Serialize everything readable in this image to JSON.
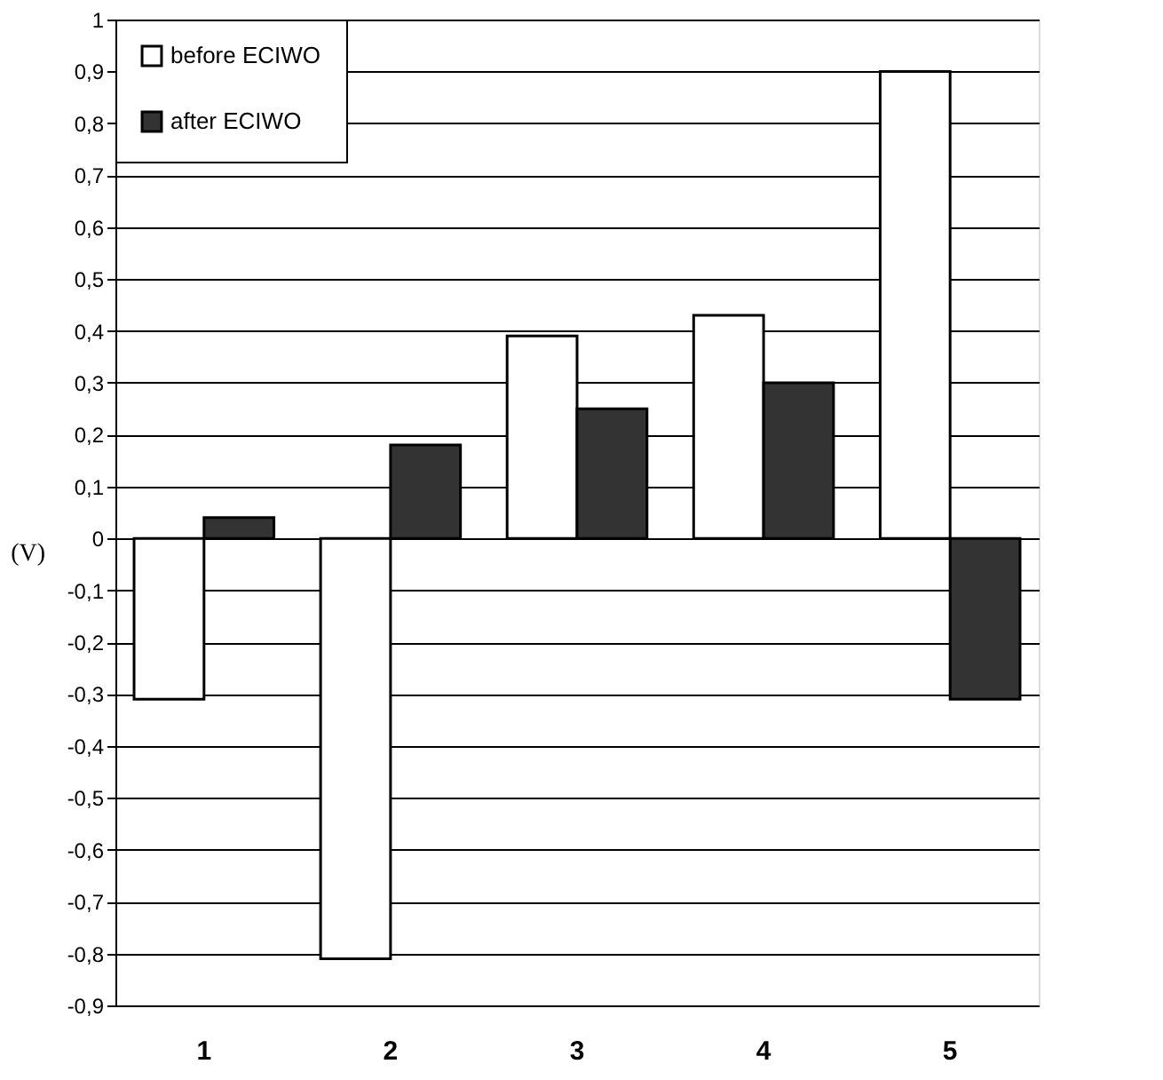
{
  "chart_data": {
    "type": "bar",
    "ylabel": "(V)",
    "categories": [
      "1",
      "2",
      "3",
      "4",
      "5"
    ],
    "series": [
      {
        "name": "before ECIWO",
        "color": "#ffffff",
        "values": [
          -0.31,
          -0.81,
          0.39,
          0.43,
          0.9
        ]
      },
      {
        "name": "after ECIWO",
        "color": "#333333",
        "values": [
          0.04,
          0.18,
          0.25,
          0.3,
          -0.31
        ]
      }
    ],
    "ylim": [
      -0.9,
      1
    ],
    "yticks": [
      {
        "value": -0.9,
        "label": "-0,9"
      },
      {
        "value": -0.8,
        "label": "-0,8"
      },
      {
        "value": -0.7,
        "label": "-0,7"
      },
      {
        "value": -0.6,
        "label": "-0,6"
      },
      {
        "value": -0.5,
        "label": "-0,5"
      },
      {
        "value": -0.4,
        "label": "-0,4"
      },
      {
        "value": -0.3,
        "label": "-0,3"
      },
      {
        "value": -0.2,
        "label": "-0,2"
      },
      {
        "value": -0.1,
        "label": "-0,1"
      },
      0,
      {
        "value": 0.1,
        "label": "0,1"
      },
      {
        "value": 0.2,
        "label": "0,2"
      },
      {
        "value": 0.3,
        "label": "0,3"
      },
      {
        "value": 0.4,
        "label": "0,4"
      },
      {
        "value": 0.5,
        "label": "0,5"
      },
      {
        "value": 0.6,
        "label": "0,6"
      },
      {
        "value": 0.7,
        "label": "0,7"
      },
      {
        "value": 0.8,
        "label": "0,8"
      },
      {
        "value": 0.9,
        "label": "0,9"
      },
      1
    ],
    "grid": "y",
    "legend": "top left"
  }
}
